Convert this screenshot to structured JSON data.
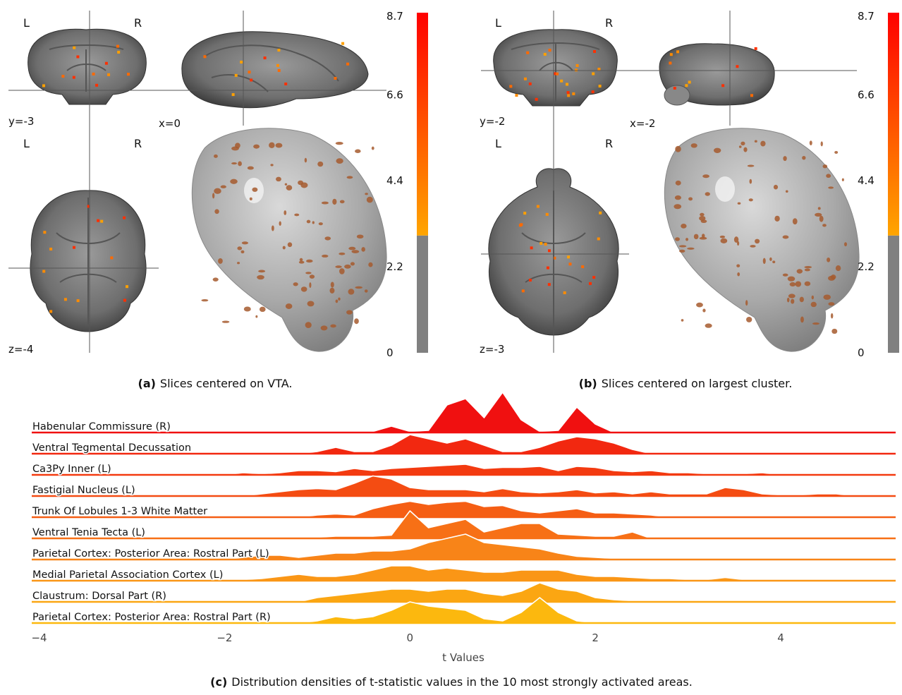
{
  "panel_a": {
    "orientation_labels": [
      "L",
      "R",
      "L",
      "R"
    ],
    "slice_labels": [
      "y=-3",
      "x=0",
      "z=-4"
    ],
    "colorbar": {
      "lim": [
        0,
        8.7
      ],
      "ticks": [
        0,
        2.2,
        4.4,
        6.6,
        8.7
      ],
      "threshold": 3.0
    },
    "caption_label": "(a)",
    "caption": "Slices centered on VTA."
  },
  "panel_b": {
    "orientation_labels": [
      "L",
      "R",
      "L",
      "R"
    ],
    "slice_labels": [
      "y=-2",
      "x=-2",
      "z=-3"
    ],
    "colorbar": {
      "lim": [
        0,
        8.7
      ],
      "ticks": [
        0,
        2.2,
        4.4,
        6.6,
        8.7
      ],
      "threshold": 3.0
    },
    "caption_label": "(b)",
    "caption": "Slices centered on largest cluster."
  },
  "chart_data": {
    "type": "ridgeline",
    "xlabel": "t Values",
    "xlim": [
      -4.08,
      5.24
    ],
    "xticks": [
      {
        "value": -4,
        "label": "−4"
      },
      {
        "value": -2,
        "label": "−2"
      },
      0,
      2,
      4
    ],
    "x": [
      -2.0,
      -1.8,
      -1.6,
      -1.4,
      -1.2,
      -1.0,
      -0.8,
      -0.6,
      -0.4,
      -0.2,
      0.0,
      0.2,
      0.4,
      0.6,
      0.8,
      1.0,
      1.2,
      1.4,
      1.6,
      1.8,
      2.0,
      2.2,
      2.4,
      2.6,
      2.8,
      3.0,
      3.2,
      3.4,
      3.6,
      3.8,
      4.0,
      4.2,
      4.4,
      4.6,
      4.8
    ],
    "series": [
      {
        "name": "Habenular Commissure (R)",
        "color": "#f01010",
        "values": [
          0,
          0,
          0,
          0,
          0,
          0,
          0,
          0,
          0.05,
          0.3,
          0.05,
          0.1,
          1.3,
          1.6,
          0.7,
          1.9,
          0.6,
          0.05,
          0.1,
          1.2,
          0.4,
          0,
          0,
          0,
          0,
          0,
          0,
          0,
          0,
          0,
          0,
          0,
          0,
          0,
          0
        ]
      },
      {
        "name": "Ventral Tegmental Decussation",
        "color": "#f22810",
        "values": [
          0,
          0,
          0,
          0,
          0,
          0.1,
          0.3,
          0.1,
          0.1,
          0.4,
          0.9,
          0.7,
          0.5,
          0.7,
          0.4,
          0.1,
          0.1,
          0.3,
          0.6,
          0.8,
          0.7,
          0.5,
          0.2,
          0,
          0,
          0,
          0,
          0,
          0,
          0,
          0,
          0,
          0,
          0,
          0
        ]
      },
      {
        "name": "Ca3Py Inner (L)",
        "color": "#f33a10",
        "values": [
          0,
          0.1,
          0.05,
          0.1,
          0.2,
          0.2,
          0.15,
          0.3,
          0.2,
          0.3,
          0.35,
          0.4,
          0.45,
          0.5,
          0.3,
          0.35,
          0.35,
          0.4,
          0.2,
          0.4,
          0.35,
          0.2,
          0.15,
          0.2,
          0.1,
          0.1,
          0.05,
          0.05,
          0.05,
          0.1,
          0,
          0,
          0,
          0,
          0
        ]
      },
      {
        "name": "Fastigial Nucleus (L)",
        "color": "#f44c12",
        "values": [
          0,
          0,
          0.1,
          0.2,
          0.3,
          0.35,
          0.3,
          0.6,
          0.95,
          0.8,
          0.4,
          0.3,
          0.3,
          0.3,
          0.2,
          0.35,
          0.2,
          0.15,
          0.2,
          0.3,
          0.15,
          0.2,
          0.1,
          0.2,
          0.1,
          0.1,
          0.1,
          0.4,
          0.3,
          0.1,
          0.05,
          0.05,
          0.1,
          0.1,
          0
        ]
      },
      {
        "name": "Trunk Of Lobules 1-3 White Matter",
        "color": "#f55e14",
        "values": [
          0,
          0,
          0,
          0,
          0,
          0.1,
          0.15,
          0.1,
          0.4,
          0.6,
          0.75,
          0.6,
          0.7,
          0.75,
          0.5,
          0.55,
          0.3,
          0.2,
          0.3,
          0.4,
          0.2,
          0.2,
          0.15,
          0.1,
          0,
          0,
          0,
          0,
          0,
          0,
          0,
          0,
          0,
          0,
          0
        ]
      },
      {
        "name": "Ventral Tenia Tecta (L)",
        "color": "#f77016",
        "values": [
          0,
          0,
          0,
          0,
          0,
          0.05,
          0.1,
          0.1,
          0.1,
          0.15,
          1.3,
          0.5,
          0.7,
          0.9,
          0.3,
          0.5,
          0.7,
          0.7,
          0.2,
          0.15,
          0.1,
          0.1,
          0.3,
          0,
          0,
          0,
          0,
          0,
          0,
          0,
          0,
          0,
          0,
          0,
          0
        ]
      },
      {
        "name": "Parietal Cortex: Posterior Area: Rostral Part (L)",
        "color": "#f88418",
        "values": [
          0,
          0.1,
          0.2,
          0.2,
          0.1,
          0.2,
          0.3,
          0.3,
          0.4,
          0.4,
          0.5,
          0.8,
          1.0,
          1.2,
          0.8,
          0.7,
          0.6,
          0.5,
          0.3,
          0.15,
          0.1,
          0.05,
          0,
          0,
          0,
          0,
          0,
          0,
          0,
          0,
          0,
          0,
          0,
          0,
          0
        ]
      },
      {
        "name": "Medial Parietal Association Cortex (L)",
        "color": "#fa9616",
        "values": [
          0.05,
          0.05,
          0.1,
          0.2,
          0.3,
          0.2,
          0.2,
          0.3,
          0.5,
          0.7,
          0.7,
          0.5,
          0.6,
          0.5,
          0.4,
          0.4,
          0.5,
          0.5,
          0.5,
          0.3,
          0.2,
          0.2,
          0.15,
          0.1,
          0.1,
          0.05,
          0.05,
          0.15,
          0.05,
          0,
          0,
          0,
          0,
          0,
          0
        ]
      },
      {
        "name": "Claustrum: Dorsal Part (R)",
        "color": "#fba612",
        "values": [
          0,
          0,
          0,
          0,
          0,
          0.2,
          0.3,
          0.4,
          0.5,
          0.6,
          0.6,
          0.5,
          0.6,
          0.6,
          0.4,
          0.3,
          0.5,
          0.9,
          0.6,
          0.5,
          0.2,
          0.1,
          0.05,
          0,
          0,
          0,
          0,
          0,
          0,
          0,
          0,
          0,
          0,
          0,
          0
        ]
      },
      {
        "name": "Parietal Cortex: Posterior Area: Rostral Part (R)",
        "color": "#fcb80e",
        "values": [
          0,
          0,
          0,
          0,
          0,
          0.1,
          0.3,
          0.2,
          0.3,
          0.6,
          1.0,
          0.8,
          0.7,
          0.6,
          0.2,
          0.1,
          0.5,
          1.2,
          0.5,
          0.1,
          0,
          0,
          0,
          0,
          0,
          0,
          0,
          0,
          0,
          0,
          0,
          0,
          0,
          0,
          0
        ]
      }
    ],
    "caption_label": "(c)",
    "caption": "Distribution densities of t-statistic values in the 10 most strongly activated areas."
  }
}
